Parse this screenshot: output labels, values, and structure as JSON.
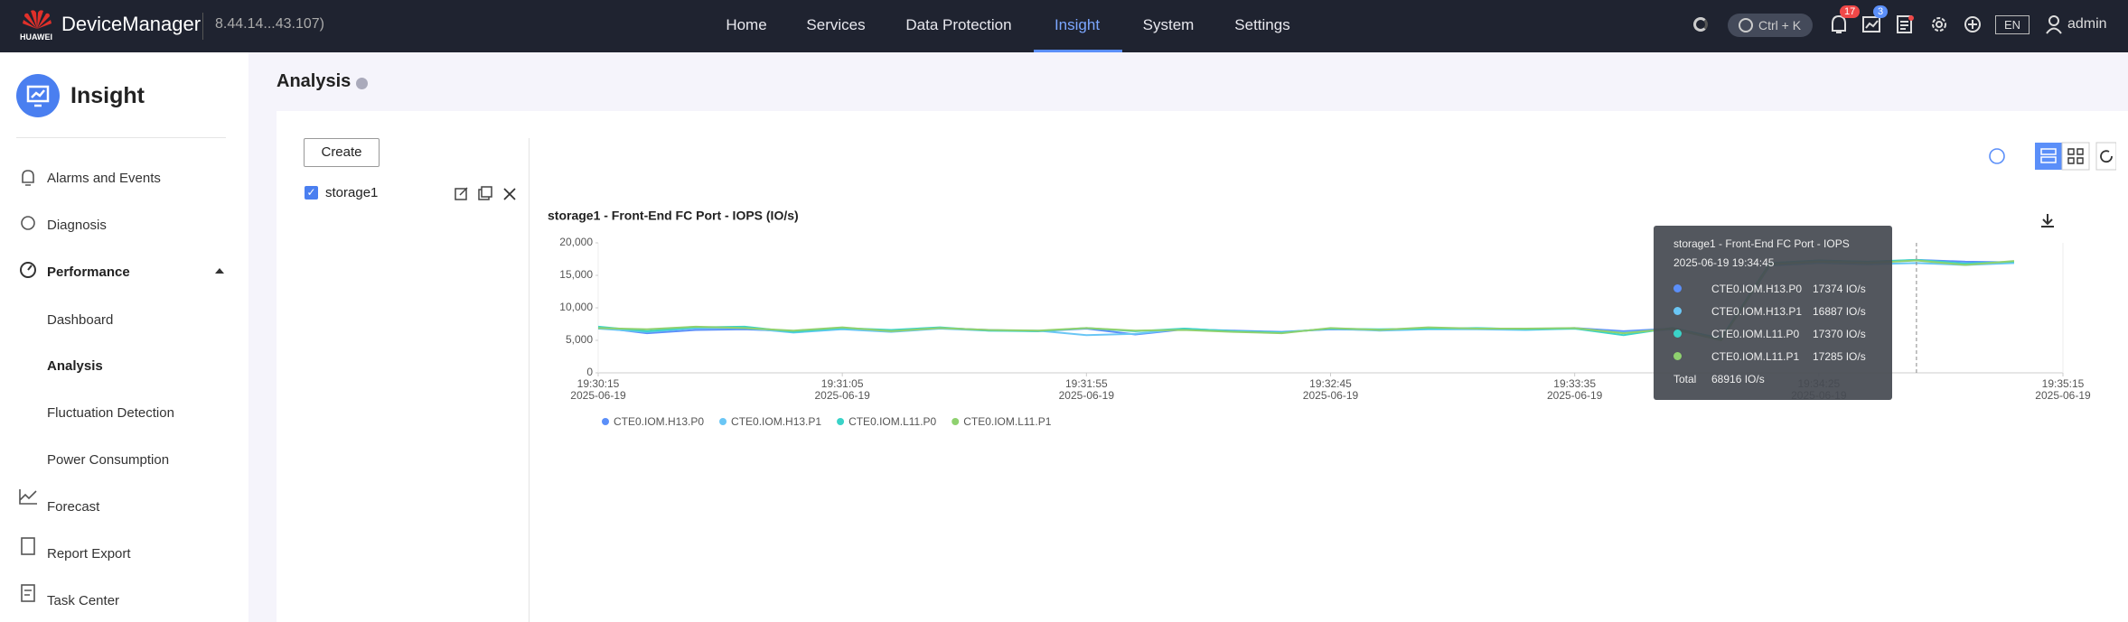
{
  "header": {
    "logo": "HUAWEI",
    "product": "DeviceManager",
    "address": "8.44.14...43.107)",
    "nav": [
      "Home",
      "Services",
      "Data Protection",
      "Insight",
      "System",
      "Settings"
    ],
    "search": "Ctrl + K",
    "alarm_badge": "17",
    "task_badge": "3",
    "language": "EN",
    "user": "admin"
  },
  "sidebar": {
    "title": "Insight",
    "items": [
      "Alarms and Events",
      "Diagnosis",
      "Performance",
      "Dashboard",
      "Analysis",
      "Fluctuation Detection",
      "Power Consumption",
      "Forecast",
      "Report Export",
      "Task Center"
    ]
  },
  "page": {
    "title": "Analysis",
    "create": "Create",
    "object": "storage1"
  },
  "chart_data": {
    "type": "line",
    "title": "storage1 - Front-End FC Port - IOPS (IO/s)",
    "date": "2025-06-19",
    "x": [
      "19:30:15",
      "19:30:25",
      "19:30:35",
      "19:30:45",
      "19:30:55",
      "19:31:05",
      "19:31:15",
      "19:31:25",
      "19:31:35",
      "19:31:45",
      "19:31:55",
      "19:32:05",
      "19:32:15",
      "19:32:25",
      "19:32:35",
      "19:32:45",
      "19:32:55",
      "19:33:05",
      "19:33:15",
      "19:33:25",
      "19:33:35",
      "19:33:45",
      "19:33:55",
      "19:34:05",
      "19:34:15",
      "19:34:25",
      "19:34:35",
      "19:34:45",
      "19:34:55",
      "19:35:05"
    ],
    "xlim": [
      "19:30:15",
      "19:35:15"
    ],
    "xticks": [
      "19:30:15",
      "19:31:05",
      "19:31:55",
      "19:32:45",
      "19:33:35",
      "19:34:25",
      "19:35:15"
    ],
    "ylim": [
      0,
      20000
    ],
    "yticks": [
      0,
      {
        "value": 5000,
        "label": "5,000"
      },
      {
        "value": 10000,
        "label": "10,000"
      },
      {
        "value": 15000,
        "label": "15,000"
      },
      {
        "value": 20000,
        "label": "20,000"
      }
    ],
    "grid": false,
    "series": [
      {
        "name": "CTE0.IOM.H13.P0",
        "color": "#5b8ff9",
        "values": [
          7000,
          6100,
          6600,
          6700,
          6400,
          6800,
          6500,
          6900,
          6600,
          6400,
          6800,
          5900,
          6700,
          6500,
          6300,
          6700,
          6600,
          6900,
          6800,
          6700,
          6900,
          6400,
          6800,
          5200,
          16800,
          17200,
          17000,
          17374,
          17100,
          17000
        ]
      },
      {
        "name": "CTE0.IOM.H13.P1",
        "color": "#6ac6f5",
        "values": [
          6800,
          6300,
          6900,
          6900,
          6200,
          6700,
          6300,
          6800,
          6500,
          6500,
          5800,
          6000,
          6800,
          6400,
          6200,
          6800,
          6500,
          6700,
          6700,
          6600,
          6800,
          6200,
          6700,
          5100,
          16500,
          16900,
          16700,
          16887,
          16600,
          16900
        ]
      },
      {
        "name": "CTE0.IOM.L11.P0",
        "color": "#3ad3c8",
        "values": [
          7100,
          6400,
          7000,
          7100,
          6300,
          6900,
          6600,
          7000,
          6500,
          6400,
          6900,
          6400,
          6800,
          6400,
          6200,
          6800,
          6700,
          6800,
          6900,
          6700,
          6800,
          5800,
          6900,
          5300,
          16900,
          17300,
          17100,
          17370,
          16800,
          17100
        ]
      },
      {
        "name": "CTE0.IOM.L11.P1",
        "color": "#8fd16f",
        "values": [
          6900,
          6700,
          7100,
          6900,
          6500,
          7000,
          6400,
          6900,
          6600,
          6500,
          6900,
          6500,
          6600,
          6300,
          6100,
          6900,
          6600,
          7000,
          6800,
          6800,
          6900,
          6100,
          6800,
          5000,
          16700,
          17100,
          16900,
          17285,
          16600,
          17200
        ]
      }
    ]
  },
  "tooltip": {
    "title": "storage1 - Front-End FC Port - IOPS",
    "time": "2025-06-19 19:34:45",
    "rows": [
      {
        "name": "CTE0.IOM.H13.P0",
        "value": "17374 IO/s"
      },
      {
        "name": "CTE0.IOM.H13.P1",
        "value": "16887 IO/s"
      },
      {
        "name": "CTE0.IOM.L11.P0",
        "value": "17370 IO/s"
      },
      {
        "name": "CTE0.IOM.L11.P1",
        "value": "17285 IO/s"
      }
    ],
    "total_label": "Total",
    "total": "68916 IO/s"
  }
}
